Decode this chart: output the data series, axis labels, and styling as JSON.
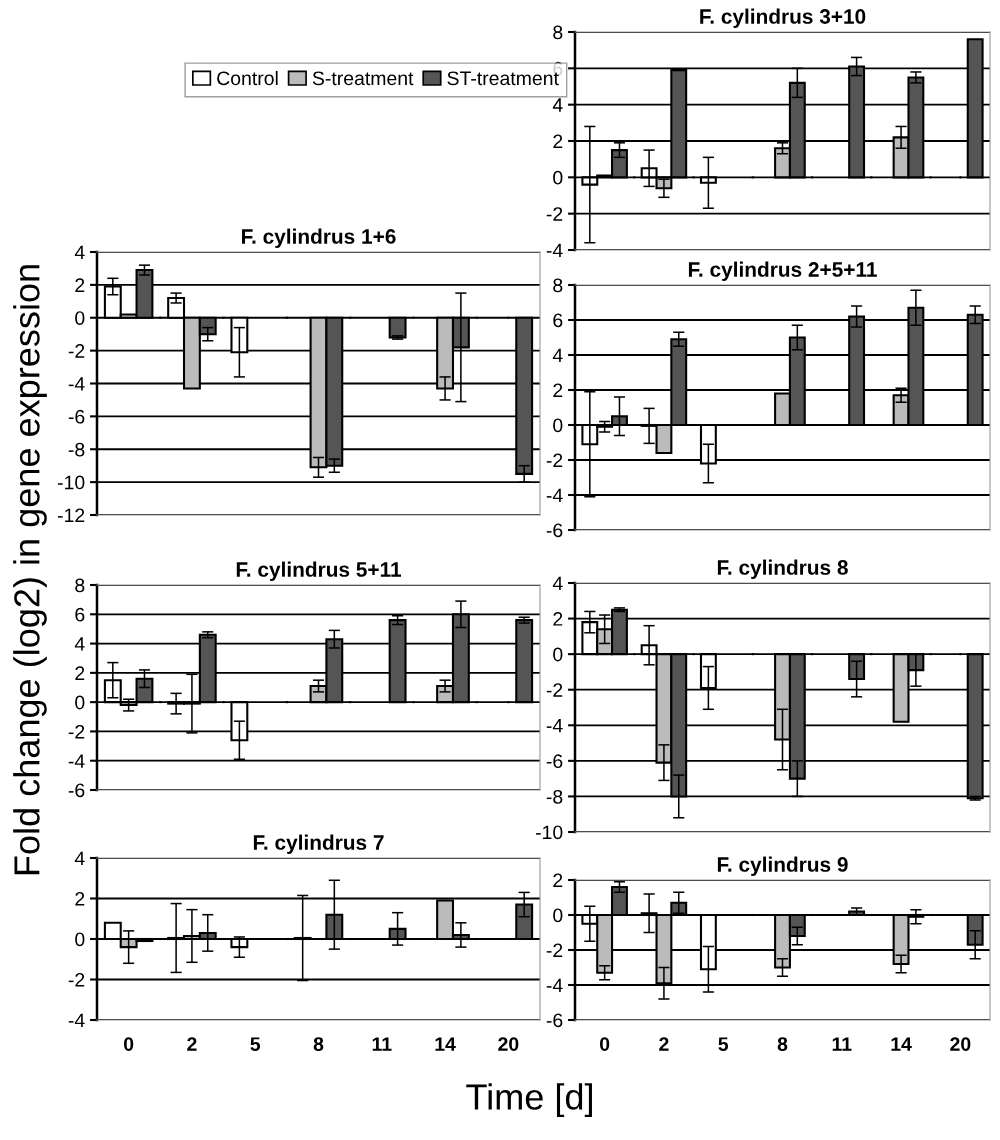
{
  "chart_data": [
    {
      "type": "bar",
      "title": "F. cylindrus 3+10",
      "categories": [
        "0",
        "2",
        "5",
        "8",
        "11",
        "14",
        "20"
      ],
      "ylim": [
        -4,
        8
      ],
      "yticks": [
        -4,
        -2,
        0,
        2,
        4,
        6,
        8
      ],
      "grid": "y",
      "legend": "left",
      "tick_labels": "y",
      "series": [
        {
          "name": "Control",
          "color": "#ffffff",
          "values": [
            -0.4,
            0.5,
            -0.3,
            null,
            null,
            null,
            null
          ],
          "errors": [
            3.2,
            1.0,
            1.4,
            null,
            null,
            null,
            null
          ]
        },
        {
          "name": "S-treatment",
          "color": "#bbbbbb",
          "values": [
            0.1,
            -0.6,
            null,
            1.6,
            null,
            2.2,
            null
          ],
          "errors": [
            null,
            0.5,
            null,
            0.3,
            null,
            0.6,
            null
          ]
        },
        {
          "name": "ST-treatment",
          "color": "#555555",
          "values": [
            1.5,
            5.9,
            null,
            5.2,
            6.1,
            5.5,
            7.6
          ],
          "errors": [
            0.4,
            null,
            null,
            0.8,
            0.5,
            0.3,
            null
          ]
        }
      ]
    },
    {
      "type": "bar",
      "title": "F. cylindrus 1+6",
      "categories": [
        "0",
        "2",
        "5",
        "8",
        "11",
        "14",
        "20"
      ],
      "ylim": [
        -12,
        4
      ],
      "yticks": [
        -12,
        -10,
        -8,
        -6,
        -4,
        -2,
        0,
        2,
        4
      ],
      "grid": "y",
      "tick_labels": "y",
      "ylabel": "Fold change (log2) in gene expression",
      "series": [
        {
          "color": "#ffffff",
          "values": [
            1.9,
            1.2,
            -2.1,
            null,
            null,
            null,
            null
          ],
          "errors": [
            0.5,
            0.3,
            1.5,
            null,
            null,
            null,
            null
          ]
        },
        {
          "color": "#bbbbbb",
          "values": [
            0.2,
            -4.3,
            null,
            -9.1,
            null,
            -4.3,
            null
          ],
          "errors": [
            null,
            null,
            null,
            0.6,
            null,
            0.7,
            null
          ]
        },
        {
          "color": "#555555",
          "values": [
            2.9,
            -1.0,
            null,
            -9.0,
            -1.2,
            -1.8,
            -9.5
          ],
          "errors": [
            0.3,
            0.4,
            null,
            0.4,
            0.1,
            3.3,
            0.5
          ]
        }
      ]
    },
    {
      "type": "bar",
      "title": "F. cylindrus 2+5+11",
      "categories": [
        "0",
        "2",
        "5",
        "8",
        "11",
        "14",
        "20"
      ],
      "ylim": [
        -6,
        8
      ],
      "yticks": [
        -6,
        -4,
        -2,
        0,
        2,
        4,
        6,
        8
      ],
      "grid": "y",
      "tick_labels": "y",
      "series": [
        {
          "color": "#ffffff",
          "values": [
            -1.1,
            -0.05,
            -2.2,
            null,
            null,
            null,
            null
          ],
          "errors": [
            3.0,
            1.0,
            1.1,
            null,
            null,
            null,
            null
          ]
        },
        {
          "color": "#bbbbbb",
          "values": [
            -0.1,
            -1.6,
            null,
            1.8,
            null,
            1.7,
            null
          ],
          "errors": [
            0.3,
            null,
            null,
            null,
            null,
            0.4,
            null
          ]
        },
        {
          "color": "#555555",
          "values": [
            0.5,
            4.9,
            null,
            5.0,
            6.2,
            6.7,
            6.3
          ],
          "errors": [
            1.1,
            0.4,
            null,
            0.7,
            0.6,
            1.0,
            0.5
          ]
        }
      ]
    },
    {
      "type": "bar",
      "title": "F. cylindrus 5+11",
      "categories": [
        "0",
        "2",
        "5",
        "8",
        "11",
        "14",
        "20"
      ],
      "ylim": [
        -6,
        8
      ],
      "yticks": [
        -6,
        -4,
        -2,
        0,
        2,
        4,
        6,
        8
      ],
      "grid": "y",
      "tick_labels": "y",
      "series": [
        {
          "color": "#ffffff",
          "values": [
            1.5,
            -0.1,
            -2.6,
            null,
            null,
            null,
            null
          ],
          "errors": [
            1.2,
            0.7,
            1.3,
            null,
            null,
            null,
            null
          ]
        },
        {
          "color": "#bbbbbb",
          "values": [
            -0.2,
            -0.1,
            null,
            1.1,
            null,
            1.1,
            null
          ],
          "errors": [
            0.4,
            2.0,
            null,
            0.4,
            null,
            0.4,
            null
          ]
        },
        {
          "color": "#555555",
          "values": [
            1.6,
            4.6,
            null,
            4.3,
            5.6,
            6.0,
            5.6
          ],
          "errors": [
            0.6,
            0.2,
            null,
            0.6,
            0.3,
            0.9,
            0.2
          ]
        }
      ]
    },
    {
      "type": "bar",
      "title": "F. cylindrus 8",
      "categories": [
        "0",
        "2",
        "5",
        "8",
        "11",
        "14",
        "20"
      ],
      "ylim": [
        -10,
        4
      ],
      "yticks": [
        -10,
        -8,
        -6,
        -4,
        -2,
        0,
        2,
        4
      ],
      "grid": "y",
      "tick_labels": "y",
      "series": [
        {
          "color": "#ffffff",
          "values": [
            1.8,
            0.5,
            -1.9,
            null,
            null,
            null,
            null
          ],
          "errors": [
            0.6,
            1.1,
            1.2,
            null,
            null,
            null,
            null
          ]
        },
        {
          "color": "#bbbbbb",
          "values": [
            1.4,
            -6.1,
            null,
            -4.8,
            null,
            -3.8,
            null
          ],
          "errors": [
            0.8,
            1.0,
            null,
            1.7,
            null,
            null,
            null
          ]
        },
        {
          "color": "#555555",
          "values": [
            2.5,
            -8.0,
            null,
            -7.0,
            -1.4,
            -0.9,
            -8.1
          ],
          "errors": [
            0.1,
            1.2,
            null,
            1.0,
            1.0,
            0.9,
            0.1
          ]
        }
      ]
    },
    {
      "type": "bar",
      "title": "F. cylindrus 7",
      "categories": [
        "0",
        "2",
        "5",
        "8",
        "11",
        "14",
        "20"
      ],
      "ylim": [
        -4,
        4
      ],
      "yticks": [
        -4,
        -2,
        0,
        2,
        4
      ],
      "grid": "y",
      "xlabel": "Time [d]",
      "series": [
        {
          "color": "#ffffff",
          "values": [
            0.8,
            0.05,
            -0.4,
            0.05,
            null,
            null,
            null
          ],
          "errors": [
            null,
            1.7,
            0.5,
            2.1,
            null,
            null,
            null
          ]
        },
        {
          "color": "#bbbbbb",
          "values": [
            -0.4,
            0.15,
            null,
            null,
            null,
            1.9,
            null
          ],
          "errors": [
            0.8,
            1.3,
            null,
            null,
            null,
            null,
            null
          ]
        },
        {
          "color": "#555555",
          "values": [
            -0.1,
            0.3,
            null,
            1.2,
            0.5,
            0.2,
            1.7
          ],
          "errors": [
            null,
            0.9,
            null,
            1.7,
            0.8,
            0.6,
            0.6
          ]
        }
      ]
    },
    {
      "type": "bar",
      "title": "F. cylindrus 9",
      "categories": [
        "0",
        "2",
        "5",
        "8",
        "11",
        "14",
        "20"
      ],
      "ylim": [
        -6,
        2
      ],
      "yticks": [
        -6,
        -4,
        -2,
        0,
        2
      ],
      "grid": "y",
      "series": [
        {
          "color": "#ffffff",
          "values": [
            -0.5,
            0.1,
            -3.1,
            null,
            null,
            null,
            null
          ],
          "errors": [
            1.0,
            1.1,
            1.3,
            null,
            null,
            null,
            null
          ]
        },
        {
          "color": "#bbbbbb",
          "values": [
            -3.3,
            -3.9,
            null,
            -3.0,
            null,
            -2.8,
            null
          ],
          "errors": [
            0.4,
            0.9,
            null,
            0.5,
            null,
            0.5,
            null
          ]
        },
        {
          "color": "#555555",
          "values": [
            1.6,
            0.7,
            null,
            -1.2,
            0.2,
            -0.1,
            -1.7
          ],
          "errors": [
            0.3,
            0.6,
            null,
            0.5,
            0.2,
            0.4,
            0.8
          ]
        }
      ]
    }
  ]
}
